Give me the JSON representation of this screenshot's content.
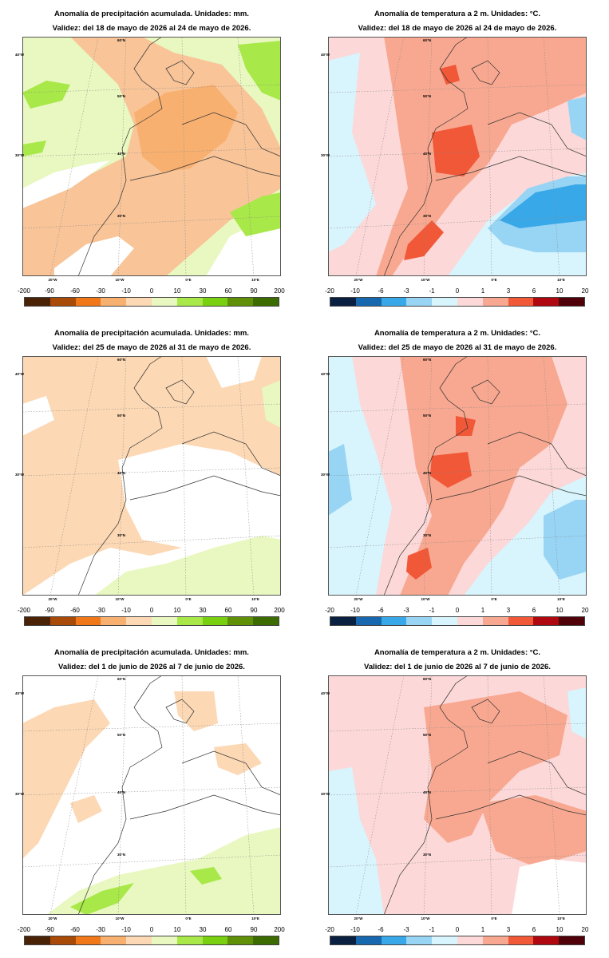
{
  "panels": [
    {
      "kind": "precip",
      "title": "Anomalía de precipitación acumulada. Unidades: mm.",
      "validity": "Validez: del 18 de mayo de 2026 al 24 de mayo de 2026."
    },
    {
      "kind": "temp",
      "title": "Anomalía de temperatura a 2 m. Unidades: °C.",
      "validity": "Validez: del 18 de mayo de 2026 al 24 de mayo de 2026."
    },
    {
      "kind": "precip",
      "title": "Anomalía de precipitación acumulada. Unidades: mm.",
      "validity": "Validez: del 25 de mayo de 2026 al 31 de mayo de 2026."
    },
    {
      "kind": "temp",
      "title": "Anomalía de temperatura a 2 m. Unidades: °C.",
      "validity": "Validez: del 25 de mayo de 2026 al 31 de mayo de 2026."
    },
    {
      "kind": "precip",
      "title": "Anomalía de precipitación acumulada. Unidades: mm.",
      "validity": "Validez: del 1 de junio de 2026 al 7 de junio de 2026."
    },
    {
      "kind": "temp",
      "title": "Anomalía de temperatura a 2 m. Unidades: °C.",
      "validity": "Validez: del 1 de junio de 2026 al 7 de junio de 2026."
    }
  ],
  "scales": {
    "precip": {
      "ticks": [
        "-200",
        "-90",
        "-60",
        "-30",
        "-10",
        "0",
        "10",
        "30",
        "60",
        "90",
        "200"
      ],
      "colors": [
        "#4a2206",
        "#a84a08",
        "#f07818",
        "#f8b070",
        "#fcd8b4",
        "#e8f8c0",
        "#a8e848",
        "#78d010",
        "#609008",
        "#3c6c00"
      ]
    },
    "temp": {
      "ticks": [
        "-20",
        "-10",
        "-6",
        "-3",
        "-1",
        "0",
        "1",
        "3",
        "6",
        "10",
        "20"
      ],
      "colors": [
        "#0a2040",
        "#1868b0",
        "#38a8e8",
        "#98d4f4",
        "#d8f4fc",
        "#fcd8d8",
        "#f8a890",
        "#f05838",
        "#b00810",
        "#500008"
      ]
    }
  },
  "map_labels": {
    "lat": [
      "40°N",
      "50°N",
      "30°N",
      "40°N",
      "30°N"
    ],
    "lon": [
      "20°W",
      "10°W",
      "0°E",
      "10°E"
    ],
    "lat_label_60": "60°N",
    "lat_label_50": "50°N",
    "lat_label_40": "40°N",
    "lat_label_30": "30°N",
    "lon_label_20w": "20°W",
    "lon_label_10w": "10°W",
    "lon_label_0": "0°E",
    "lon_label_10e": "10°E",
    "lat_label_left_top": "40°W",
    "lat_label_left_mid": "30°W"
  }
}
